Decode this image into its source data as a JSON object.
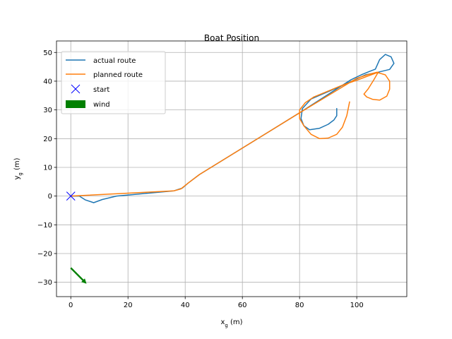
{
  "chart_data": {
    "type": "line",
    "title": "Boat Position",
    "xlabel": {
      "base": "x",
      "sub": "g",
      "unit": " (m)"
    },
    "ylabel": {
      "base": "y",
      "sub": "g",
      "unit": " (m)"
    },
    "xlim": [
      -5,
      117.5
    ],
    "ylim": [
      -35,
      54
    ],
    "xticks": [
      0,
      20,
      40,
      60,
      80,
      100
    ],
    "yticks": [
      -30,
      -20,
      -10,
      0,
      10,
      20,
      30,
      40,
      50
    ],
    "xtick_labels": [
      "0",
      "20",
      "40",
      "60",
      "80",
      "100"
    ],
    "ytick_labels": [
      "−30",
      "−20",
      "−10",
      "0",
      "10",
      "20",
      "30",
      "40",
      "50"
    ],
    "grid": true,
    "legend_position": "upper-left",
    "series": [
      {
        "name": "actual route",
        "color": "#1f77b4",
        "points": [
          [
            0,
            0
          ],
          [
            3,
            0
          ],
          [
            5,
            -1.3
          ],
          [
            8,
            -2.3
          ],
          [
            11,
            -1.2
          ],
          [
            16,
            0
          ],
          [
            36,
            1.8
          ],
          [
            39,
            2.8
          ],
          [
            41,
            4.5
          ],
          [
            45,
            7.5
          ],
          [
            80,
            29
          ],
          [
            98,
            40.5
          ],
          [
            102,
            42.4
          ],
          [
            104.5,
            43.4
          ],
          [
            106.5,
            44.2
          ],
          [
            108,
            47.5
          ],
          [
            110,
            49.3
          ],
          [
            112,
            48.5
          ],
          [
            113,
            46.2
          ],
          [
            111.5,
            44.1
          ],
          [
            107,
            43
          ],
          [
            103,
            42.2
          ],
          [
            100,
            40.8
          ],
          [
            95,
            38.5
          ],
          [
            84,
            33.8
          ],
          [
            81,
            30.5
          ],
          [
            80.5,
            27
          ],
          [
            81.5,
            24.5
          ],
          [
            83.5,
            23.1
          ],
          [
            87,
            23.6
          ],
          [
            90,
            25
          ],
          [
            92,
            26.5
          ],
          [
            93,
            28
          ],
          [
            93,
            30.5
          ]
        ]
      },
      {
        "name": "planned route",
        "color": "#ff7f0e",
        "points": [
          [
            0,
            0
          ],
          [
            36,
            1.8
          ],
          [
            38.5,
            2.5
          ],
          [
            41,
            4.5
          ],
          [
            45,
            7.5
          ],
          [
            80,
            29
          ],
          [
            100,
            41
          ],
          [
            104,
            42.3
          ],
          [
            107,
            43.1
          ],
          [
            110,
            42.2
          ],
          [
            111.5,
            40
          ],
          [
            111.5,
            37.2
          ],
          [
            110.5,
            34.8
          ],
          [
            108,
            33.4
          ],
          [
            105.5,
            33.7
          ],
          [
            103.5,
            34.5
          ],
          [
            102.5,
            35.5
          ],
          [
            104,
            37.3
          ],
          [
            106,
            40.5
          ],
          [
            107.5,
            43.1
          ],
          [
            104,
            41.8
          ],
          [
            100,
            40.3
          ],
          [
            95,
            38.6
          ],
          [
            85,
            34.5
          ],
          [
            82,
            32.5
          ],
          [
            80,
            30
          ],
          [
            80,
            27
          ],
          [
            81.5,
            24.5
          ],
          [
            84,
            21.5
          ],
          [
            87,
            20
          ],
          [
            90,
            20.2
          ],
          [
            93,
            21.5
          ],
          [
            95,
            24
          ],
          [
            96.5,
            28
          ],
          [
            97.5,
            32.8
          ]
        ]
      }
    ],
    "markers": [
      {
        "name": "start",
        "x": 0,
        "y": 0,
        "shape": "x",
        "color": "#0000ff"
      }
    ],
    "wind": {
      "name": "wind",
      "x": 0,
      "y": -25,
      "dx": 5.5,
      "dy": -5.5,
      "color": "#008000"
    }
  }
}
